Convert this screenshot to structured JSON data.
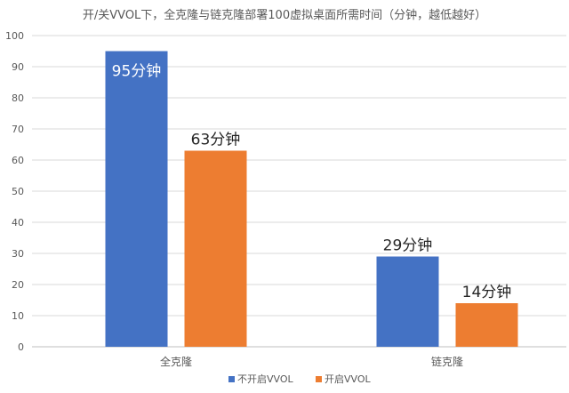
{
  "chart_data": {
    "type": "bar",
    "title": "开/关VVOL下，全克隆与链克隆部署100虚拟桌面所需时间（分钟，越低越好）",
    "categories": [
      "全克隆",
      "链克隆"
    ],
    "series": [
      {
        "name": "不开启VVOL",
        "values": [
          95,
          29
        ],
        "labels": [
          "95分钟",
          "29分钟"
        ],
        "color": "#4472C4"
      },
      {
        "name": "开启VVOL",
        "values": [
          63,
          14
        ],
        "labels": [
          "63分钟",
          "14分钟"
        ],
        "color": "#ED7D31"
      }
    ],
    "ylim": [
      0,
      100
    ],
    "yticks": [
      0,
      10,
      20,
      30,
      40,
      50,
      60,
      70,
      80,
      90,
      100
    ],
    "grid": true,
    "legend": "bottom"
  }
}
